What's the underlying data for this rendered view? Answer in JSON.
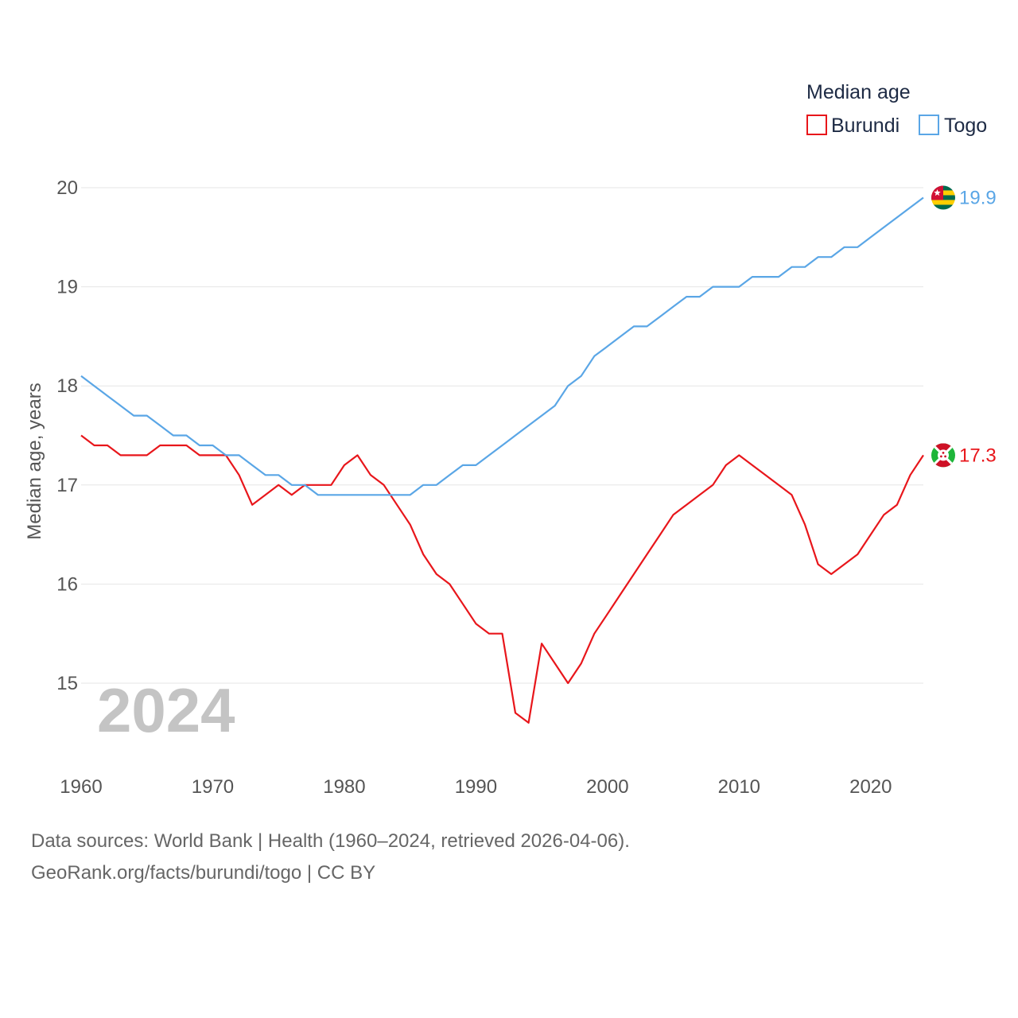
{
  "chart_data": {
    "type": "line",
    "title": "Median age",
    "xlabel": "",
    "ylabel": "Median age, years",
    "xlim": [
      1960,
      2024
    ],
    "ylim": [
      14.2,
      20.2
    ],
    "yticks": [
      15,
      16,
      17,
      18,
      19,
      20
    ],
    "xticks": [
      1960,
      1970,
      1980,
      1990,
      2000,
      2010,
      2020
    ],
    "legend_title": "Median age",
    "legend_position": "top-right",
    "grid": true,
    "watermark_year": "2024",
    "x": [
      1960,
      1961,
      1962,
      1963,
      1964,
      1965,
      1966,
      1967,
      1968,
      1969,
      1970,
      1971,
      1972,
      1973,
      1974,
      1975,
      1976,
      1977,
      1978,
      1979,
      1980,
      1981,
      1982,
      1983,
      1984,
      1985,
      1986,
      1987,
      1988,
      1989,
      1990,
      1991,
      1992,
      1993,
      1994,
      1995,
      1996,
      1997,
      1998,
      1999,
      2000,
      2001,
      2002,
      2003,
      2004,
      2005,
      2006,
      2007,
      2008,
      2009,
      2010,
      2011,
      2012,
      2013,
      2014,
      2015,
      2016,
      2017,
      2018,
      2019,
      2020,
      2021,
      2022,
      2023,
      2024
    ],
    "series": [
      {
        "name": "Burundi",
        "color": "#e8161b",
        "end_label": "17.3",
        "flag": "burundi-flag",
        "values": [
          17.5,
          17.4,
          17.4,
          17.3,
          17.3,
          17.3,
          17.4,
          17.4,
          17.4,
          17.3,
          17.3,
          17.3,
          17.1,
          16.8,
          16.9,
          17.0,
          16.9,
          17.0,
          17.0,
          17.0,
          17.2,
          17.3,
          17.1,
          17.0,
          16.8,
          16.6,
          16.3,
          16.1,
          16.0,
          15.8,
          15.6,
          15.5,
          15.5,
          14.7,
          14.6,
          15.4,
          15.2,
          15.0,
          15.2,
          15.5,
          15.7,
          15.9,
          16.1,
          16.3,
          16.5,
          16.7,
          16.8,
          16.9,
          17.0,
          17.2,
          17.3,
          17.2,
          17.1,
          17.0,
          16.9,
          16.6,
          16.2,
          16.1,
          16.2,
          16.3,
          16.5,
          16.7,
          16.8,
          17.1,
          17.3
        ]
      },
      {
        "name": "Togo",
        "color": "#5aa6e6",
        "end_label": "19.9",
        "flag": "togo-flag",
        "values": [
          18.1,
          18.0,
          17.9,
          17.8,
          17.7,
          17.7,
          17.6,
          17.5,
          17.5,
          17.4,
          17.4,
          17.3,
          17.3,
          17.2,
          17.1,
          17.1,
          17.0,
          17.0,
          16.9,
          16.9,
          16.9,
          16.9,
          16.9,
          16.9,
          16.9,
          16.9,
          17.0,
          17.0,
          17.1,
          17.2,
          17.2,
          17.3,
          17.4,
          17.5,
          17.6,
          17.7,
          17.8,
          18.0,
          18.1,
          18.3,
          18.4,
          18.5,
          18.6,
          18.6,
          18.7,
          18.8,
          18.9,
          18.9,
          19.0,
          19.0,
          19.0,
          19.1,
          19.1,
          19.1,
          19.2,
          19.2,
          19.3,
          19.3,
          19.4,
          19.4,
          19.5,
          19.6,
          19.7,
          19.8,
          19.9
        ]
      }
    ]
  },
  "footer": {
    "line1": "Data sources: World Bank | Health (1960–2024, retrieved 2026-04-06).",
    "line2": "GeoRank.org/facts/burundi/togo | CC BY"
  }
}
